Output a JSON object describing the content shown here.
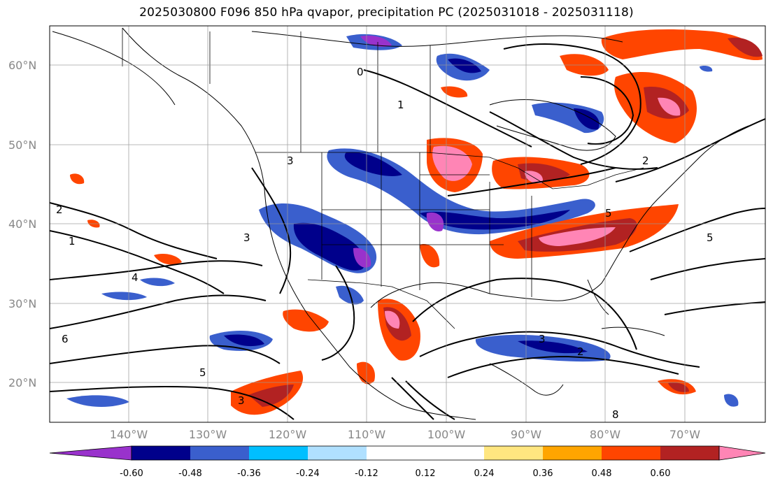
{
  "title": "2025030800 F096 850 hPa qvapor, precipitation PC (2025031018 - 2025031118)",
  "map": {
    "lon_range": [
      -150,
      -60
    ],
    "lat_range": [
      15,
      65
    ],
    "lat_ticks": [
      {
        "value": 60,
        "label": "60°N"
      },
      {
        "value": 50,
        "label": "50°N"
      },
      {
        "value": 40,
        "label": "40°N"
      },
      {
        "value": 30,
        "label": "30°N"
      },
      {
        "value": 20,
        "label": "20°N"
      }
    ],
    "lon_ticks": [
      {
        "value": -140,
        "label": "140°W"
      },
      {
        "value": -130,
        "label": "130°W"
      },
      {
        "value": -120,
        "label": "120°W"
      },
      {
        "value": -110,
        "label": "110°W"
      },
      {
        "value": -100,
        "label": "100°W"
      },
      {
        "value": -90,
        "label": "90°W"
      },
      {
        "value": -80,
        "label": "80°W"
      },
      {
        "value": -70,
        "label": "70°W"
      }
    ],
    "gridlines": true,
    "contour_labels": [
      "1",
      "2",
      "3",
      "4",
      "5",
      "6",
      "0",
      "8"
    ]
  },
  "colorbar": {
    "extend": "both",
    "colors": [
      "#9932cc",
      "#00008b",
      "#3a5fcd",
      "#00bfff",
      "#b0e0ff",
      "#ffffff",
      "#ffffff",
      "#ffe680",
      "#ffa500",
      "#ff4500",
      "#b22222",
      "#ff85b5"
    ],
    "tick_labels": [
      "-0.60",
      "-0.48",
      "-0.36",
      "-0.24",
      "-0.12",
      "0.12",
      "0.24",
      "0.36",
      "0.48",
      "0.60"
    ]
  }
}
